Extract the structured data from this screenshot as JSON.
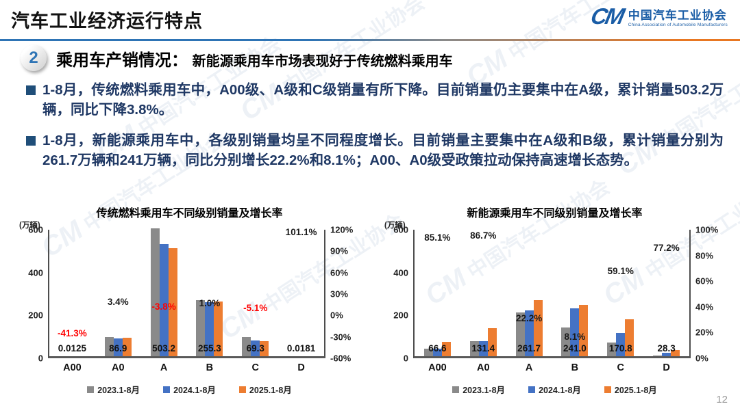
{
  "header": {
    "title": "汽车工业经济运行特点",
    "logo": {
      "mark": "CM",
      "org": "中国汽车工业协会",
      "org_en": "China Association of Automobile Manufacturers"
    }
  },
  "section": {
    "number": "2",
    "title": "乘用车产销情况：",
    "subtitle": "新能源乘用车市场表现好于传统燃料乘用车"
  },
  "bullets": [
    {
      "text": "1-8月，传统燃料乘用车中，A00级、A级和C级销量有所下降。目前销量仍主要集中在A级，累计销量503.2万辆，同比下降3.8%。"
    },
    {
      "text": "1-8月，新能源乘用车中，各级别销量均呈不同程度增长。目前销量主要集中在A级和B级，累计销量分别为261.7万辆和241万辆，同比分别增长22.2%和8.1%；A00、A0级受政策拉动保持高速增长态势。"
    }
  ],
  "watermark": {
    "text": "中国汽车工业协会"
  },
  "page_number": "12",
  "colors": {
    "accent_blue": "#2e74b5",
    "accent_orange": "#e87722",
    "logo_blue": "#1a5da6",
    "body_text": "#1f3864",
    "bar_gray": "#8a8a8a",
    "bar_blue": "#4472c4",
    "bar_orange": "#ed7d31",
    "negative_red": "#ff0000"
  },
  "chart_data": [
    {
      "type": "bar",
      "title": "传统燃料乘用车不同级别销量及增长率",
      "unit_label": "(万辆)",
      "categories": [
        "A00",
        "A0",
        "A",
        "B",
        "C",
        "D"
      ],
      "series": [
        {
          "name": "2023.1-8月",
          "color": "#8a8a8a",
          "values": [
            0.05,
            90,
            597,
            263,
            89,
            0.02
          ]
        },
        {
          "name": "2024.1-8月",
          "color": "#4472c4",
          "values": [
            0.02,
            84,
            523,
            253,
            73,
            0.009
          ]
        },
        {
          "name": "2025.1-8月",
          "color": "#ed7d31",
          "values": [
            0.0125,
            86.9,
            503.2,
            255.3,
            69.3,
            0.0181
          ]
        }
      ],
      "value_labels": [
        "0.0125",
        "86.9",
        "503.2",
        "255.3",
        "69.3",
        "0.0181"
      ],
      "growth_labels": [
        {
          "text": "-41.3%",
          "value": -41.3,
          "color": "#ff0000"
        },
        {
          "text": "3.4%",
          "value": 3.4,
          "color": "#1a1a1a"
        },
        {
          "text": "-3.8%",
          "value": -3.8,
          "color": "#ff0000"
        },
        {
          "text": "1.0%",
          "value": 1.0,
          "color": "#1a1a1a"
        },
        {
          "text": "-5.1%",
          "value": -5.1,
          "color": "#ff0000"
        },
        {
          "text": "101.1%",
          "value": 101.1,
          "color": "#1a1a1a"
        }
      ],
      "left_axis": {
        "ticks": [
          "600",
          "400",
          "200",
          "0"
        ],
        "max": 600,
        "min": 0
      },
      "right_axis": {
        "ticks": [
          "120%",
          "90%",
          "60%",
          "30%",
          "0%",
          "-30%",
          "-60%"
        ],
        "max": 120,
        "min": -60
      },
      "grid": false,
      "legend_position": "bottom"
    },
    {
      "type": "bar",
      "title": "新能源乘用车不同级别销量及增长率",
      "unit_label": "(万辆)",
      "categories": [
        "A00",
        "A0",
        "A",
        "B",
        "C",
        "D"
      ],
      "series": [
        {
          "name": "2023.1-8月",
          "color": "#8a8a8a",
          "values": [
            36,
            70,
            205,
            135,
            65,
            2
          ]
        },
        {
          "name": "2024.1-8月",
          "color": "#4472c4",
          "values": [
            36,
            70.5,
            214,
            223,
            107,
            16
          ]
        },
        {
          "name": "2025.1-8月",
          "color": "#ed7d31",
          "values": [
            66.6,
            131.4,
            261.7,
            241.0,
            170.8,
            28.3
          ]
        }
      ],
      "value_labels": [
        "66.6",
        "131.4",
        "261.7",
        "241.0",
        "170.8",
        "28.3"
      ],
      "growth_labels": [
        {
          "text": "85.1%",
          "value": 85.1,
          "color": "#1a1a1a"
        },
        {
          "text": "86.7%",
          "value": 86.7,
          "color": "#1a1a1a"
        },
        {
          "text": "22.2%",
          "value": 22.2,
          "color": "#1a1a1a"
        },
        {
          "text": "8.1%",
          "value": 8.1,
          "color": "#1a1a1a"
        },
        {
          "text": "59.1%",
          "value": 59.1,
          "color": "#1a1a1a"
        },
        {
          "text": "77.2%",
          "value": 77.2,
          "color": "#1a1a1a"
        }
      ],
      "left_axis": {
        "ticks": [
          "600",
          "400",
          "200",
          "0"
        ],
        "max": 600,
        "min": 0
      },
      "right_axis": {
        "ticks": [
          "100%",
          "80%",
          "60%",
          "40%",
          "20%",
          "0%"
        ],
        "max": 100,
        "min": 0
      },
      "grid": false,
      "legend_position": "bottom"
    }
  ]
}
